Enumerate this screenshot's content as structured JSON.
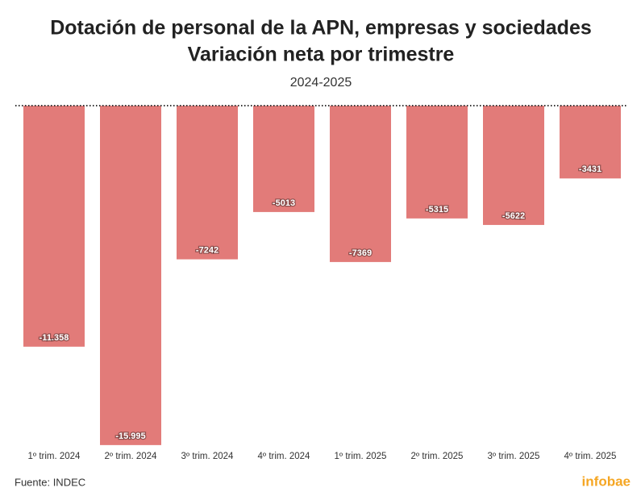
{
  "chart_data": {
    "type": "bar",
    "title": "Dotación de personal de la APN, empresas y sociedades",
    "subtitle_line": "Variación neta por trimestre",
    "subtitle": "2024-2025",
    "categories": [
      "1º trim. 2024",
      "2º trim. 2024",
      "3º trim. 2024",
      "4º trim. 2024",
      "1º trim. 2025",
      "2º trim. 2025",
      "3º trim. 2025",
      "4º trim. 2025"
    ],
    "values": [
      -11358,
      -15995,
      -7242,
      -5013,
      -7369,
      -5315,
      -5622,
      -3431
    ],
    "value_labels": [
      "-11.358",
      "-15.995",
      "-7242",
      "-5013",
      "-7369",
      "-5315",
      "-5622",
      "-3431"
    ],
    "color": "#e27b79",
    "ylim": [
      -16000,
      0
    ],
    "source": "Fuente: INDEC",
    "logo": "infobae"
  }
}
